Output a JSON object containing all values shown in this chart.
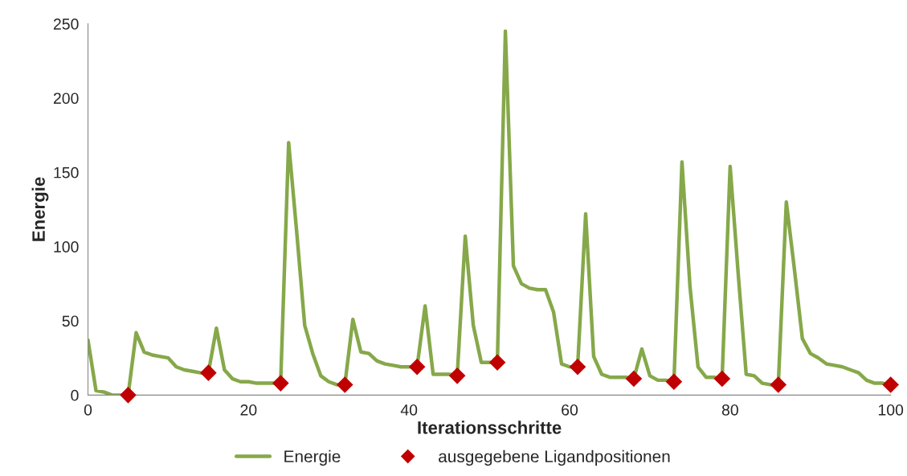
{
  "chart_data": {
    "type": "line",
    "xlabel": "Iterationsschritte",
    "ylabel": "Energie",
    "xlim": [
      0,
      100
    ],
    "xticks": [
      0,
      20,
      40,
      60,
      80,
      100
    ],
    "ylim": [
      0,
      250
    ],
    "yticks": [
      0,
      50,
      100,
      150,
      200,
      250
    ],
    "grid": false,
    "legend": "bottom",
    "series": [
      {
        "name": "Energie",
        "color": "#86a84a",
        "marker": "none",
        "line_style": "solid",
        "x": [
          0,
          1,
          2,
          3,
          4,
          5,
          6,
          7,
          8,
          9,
          10,
          11,
          12,
          13,
          14,
          15,
          16,
          17,
          18,
          19,
          20,
          21,
          22,
          23,
          24,
          25,
          26,
          27,
          28,
          29,
          30,
          31,
          32,
          33,
          34,
          35,
          36,
          37,
          38,
          39,
          40,
          41,
          42,
          43,
          44,
          45,
          46,
          47,
          48,
          49,
          50,
          51,
          52,
          53,
          54,
          55,
          56,
          57,
          58,
          59,
          60,
          61,
          62,
          63,
          64,
          65,
          66,
          67,
          68,
          69,
          70,
          71,
          72,
          73,
          74,
          75,
          76,
          77,
          78,
          79,
          80,
          81,
          82,
          83,
          84,
          85,
          86,
          87,
          88,
          89,
          90,
          91,
          92,
          93,
          94,
          95,
          96,
          97,
          98,
          99,
          100
        ],
        "values": [
          37,
          3,
          2,
          0,
          0,
          0,
          42,
          29,
          27,
          26,
          25,
          19,
          17,
          16,
          15,
          15,
          45,
          17,
          11,
          9,
          9,
          8,
          8,
          8,
          8,
          170,
          110,
          47,
          28,
          13,
          9,
          7,
          7,
          51,
          29,
          28,
          23,
          21,
          20,
          19,
          19,
          19,
          60,
          14,
          14,
          14,
          13,
          107,
          47,
          22,
          22,
          22,
          245,
          87,
          75,
          72,
          71,
          71,
          56,
          21,
          19,
          19,
          122,
          26,
          14,
          12,
          12,
          12,
          11,
          31,
          13,
          10,
          10,
          9,
          157,
          73,
          19,
          12,
          12,
          11,
          154,
          82,
          14,
          13,
          8,
          7,
          7,
          130,
          85,
          38,
          28,
          25,
          21,
          20,
          19,
          17,
          15,
          10,
          8,
          8,
          7
        ]
      },
      {
        "name": "ausgegebene Ligandpositionen",
        "type": "scatter",
        "color": "#c00000",
        "marker": "diamond",
        "x": [
          5,
          15,
          24,
          32,
          41,
          46,
          51,
          61,
          68,
          73,
          79,
          86,
          100
        ],
        "values": [
          0,
          15,
          8,
          7,
          19,
          13,
          22,
          19,
          11,
          9,
          11,
          7,
          7
        ]
      }
    ]
  }
}
